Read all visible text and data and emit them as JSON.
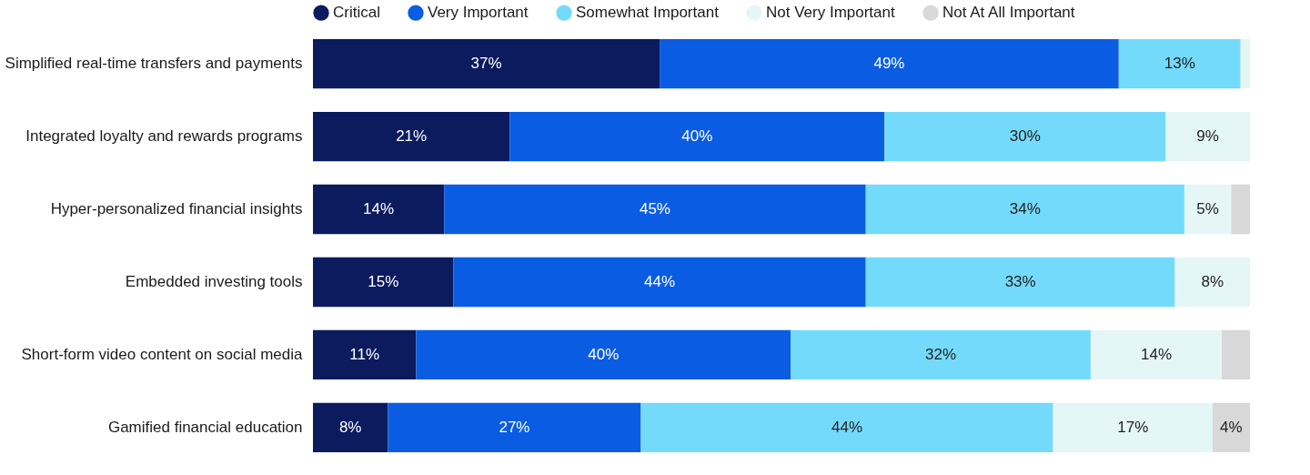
{
  "chart_data": {
    "type": "bar",
    "orientation": "horizontal",
    "stacked": true,
    "legend": "top",
    "tick_labels": "y",
    "xlim": [
      0,
      100
    ],
    "categories": [
      "Simplified real-time transfers and payments",
      "Integrated loyalty and rewards programs",
      "Hyper-personalized financial insights",
      "Embedded investing tools",
      "Short-form video content on social media",
      "Gamified financial education"
    ],
    "series": [
      {
        "name": "Critical",
        "color": "#0b1b5e",
        "values": [
          37,
          21,
          14,
          15,
          11,
          8
        ],
        "value_labels": [
          "37%",
          "21%",
          "14%",
          "15%",
          "11%",
          "8%"
        ]
      },
      {
        "name": "Very Important",
        "color": "#0a5de2",
        "values": [
          49,
          40,
          45,
          44,
          40,
          27
        ],
        "value_labels": [
          "49%",
          "40%",
          "45%",
          "44%",
          "40%",
          "27%"
        ]
      },
      {
        "name": "Somewhat Important",
        "color": "#74dafc",
        "values": [
          13,
          30,
          34,
          33,
          32,
          44
        ],
        "value_labels": [
          "13%",
          "30%",
          "34%",
          "33%",
          "32%",
          "44%"
        ]
      },
      {
        "name": "Not Very Important",
        "color": "#e5f6f7",
        "values": [
          1,
          9,
          5,
          8,
          14,
          17
        ],
        "value_labels": [
          null,
          "9%",
          "5%",
          "8%",
          "14%",
          "17%"
        ]
      },
      {
        "name": "Not At All Important",
        "color": "#d8d8d8",
        "values": [
          0,
          0,
          2,
          0,
          3,
          4
        ],
        "value_labels": [
          null,
          null,
          null,
          null,
          null,
          "4%"
        ]
      }
    ]
  }
}
